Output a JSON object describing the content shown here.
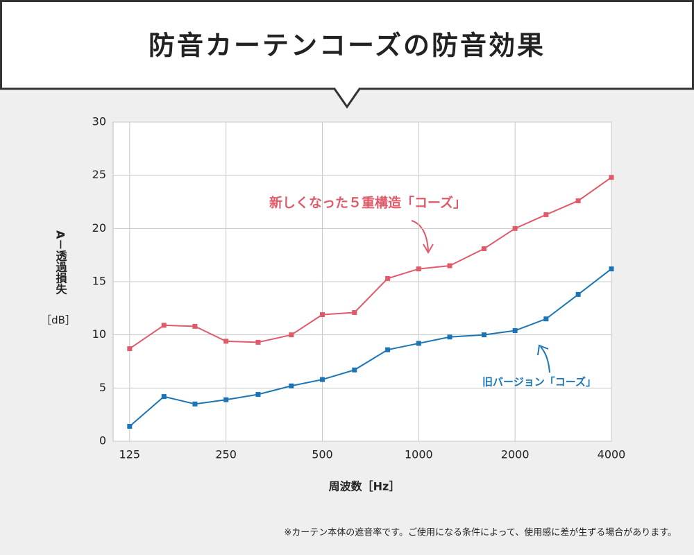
{
  "title": "防音カーテンコーズの防音効果",
  "footnote": "※カーテン本体の遮音率です。ご使用になる条件によって、使用感に差が生ずる場合があります。",
  "chart_data": {
    "type": "line",
    "x_label": "周波数［Hz］",
    "y_label": "A－透過損失",
    "y_unit": "［dB］",
    "x": [
      125,
      160,
      200,
      250,
      315,
      400,
      500,
      630,
      800,
      1000,
      1250,
      1600,
      2000,
      2500,
      3150,
      4000
    ],
    "series": [
      {
        "name": "新しくなった５重構造「コーズ」",
        "color": "#e05a6a",
        "values": [
          8.7,
          10.9,
          10.8,
          9.4,
          9.3,
          10.0,
          11.9,
          12.1,
          15.3,
          16.2,
          16.5,
          18.1,
          20.0,
          21.3,
          22.6,
          24.8
        ]
      },
      {
        "name": "旧バージョン「コーズ」",
        "color": "#1b75b5",
        "values": [
          1.4,
          4.2,
          3.5,
          3.9,
          4.4,
          5.2,
          5.8,
          6.7,
          8.6,
          9.2,
          9.8,
          10.0,
          10.4,
          11.5,
          13.8,
          16.2
        ]
      }
    ],
    "xscale": "log",
    "xlim": [
      111,
      4000
    ],
    "xticks": [
      125,
      250,
      500,
      1000,
      2000,
      4000
    ],
    "ylim": [
      0,
      30
    ],
    "yticks": [
      0,
      5,
      10,
      15,
      20,
      25,
      30
    ],
    "grid": true
  }
}
